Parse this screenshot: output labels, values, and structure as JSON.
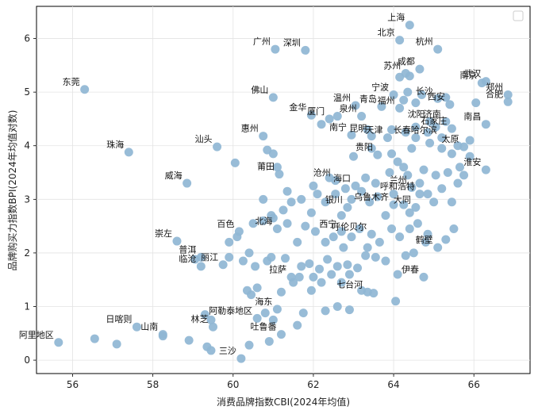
{
  "chart_data": {
    "type": "scatter",
    "title": "",
    "xlabel": "消费品牌指数CBI(2024年均值)",
    "ylabel": "品牌购买力指数BPI(2024年均值对数)",
    "xlim": [
      55.1,
      67.4
    ],
    "ylim": [
      -0.25,
      6.6
    ],
    "xticks": [
      56,
      58,
      60,
      62,
      64,
      66
    ],
    "yticks": [
      0,
      1,
      2,
      3,
      4,
      5,
      6
    ],
    "grid": true,
    "legend_position": "top-right",
    "legend_entries": [
      ""
    ],
    "point_color": "#8fb6d4",
    "labeled_points": [
      {
        "label": "上海",
        "x": 64.4,
        "y": 6.25
      },
      {
        "label": "北京",
        "x": 64.15,
        "y": 5.97
      },
      {
        "label": "杭州",
        "x": 65.1,
        "y": 5.8
      },
      {
        "label": "广州",
        "x": 61.05,
        "y": 5.8
      },
      {
        "label": "深圳",
        "x": 61.8,
        "y": 5.78
      },
      {
        "label": "成都",
        "x": 64.65,
        "y": 5.43
      },
      {
        "label": "苏州",
        "x": 64.3,
        "y": 5.35
      },
      {
        "label": "南京",
        "x": 66.2,
        "y": 5.17
      },
      {
        "label": "武汉",
        "x": 66.3,
        "y": 5.2
      },
      {
        "label": "东莞",
        "x": 56.3,
        "y": 5.05
      },
      {
        "label": "郑州",
        "x": 66.85,
        "y": 4.95
      },
      {
        "label": "合肥",
        "x": 66.85,
        "y": 4.82
      },
      {
        "label": "宁波",
        "x": 64.0,
        "y": 4.95
      },
      {
        "label": "佛山",
        "x": 61.0,
        "y": 4.9
      },
      {
        "label": "长沙",
        "x": 65.1,
        "y": 4.88
      },
      {
        "label": "西安",
        "x": 65.4,
        "y": 4.77
      },
      {
        "label": "温州",
        "x": 63.05,
        "y": 4.75
      },
      {
        "label": "青岛",
        "x": 63.7,
        "y": 4.73
      },
      {
        "label": "福州",
        "x": 64.15,
        "y": 4.7
      },
      {
        "label": "金华",
        "x": 61.95,
        "y": 4.57
      },
      {
        "label": "泉州",
        "x": 63.2,
        "y": 4.55
      },
      {
        "label": "厦门",
        "x": 62.4,
        "y": 4.5
      },
      {
        "label": "沈阳",
        "x": 64.9,
        "y": 4.45
      },
      {
        "label": "济南",
        "x": 65.3,
        "y": 4.45
      },
      {
        "label": "南昌",
        "x": 66.3,
        "y": 4.4
      },
      {
        "label": "石家庄",
        "x": 65.45,
        "y": 4.32
      },
      {
        "label": "惠州",
        "x": 60.75,
        "y": 4.18
      },
      {
        "label": "南宁",
        "x": 62.95,
        "y": 4.2
      },
      {
        "label": "昆明",
        "x": 63.45,
        "y": 4.18
      },
      {
        "label": "天津",
        "x": 63.85,
        "y": 4.15
      },
      {
        "label": "长春",
        "x": 64.55,
        "y": 4.15
      },
      {
        "label": "哈尔滨",
        "x": 65.2,
        "y": 4.15
      },
      {
        "label": "汕头",
        "x": 59.6,
        "y": 3.98
      },
      {
        "label": "太原",
        "x": 65.75,
        "y": 3.98
      },
      {
        "label": "珠海",
        "x": 57.4,
        "y": 3.88
      },
      {
        "label": "贵阳",
        "x": 63.6,
        "y": 3.83
      },
      {
        "label": "淮安",
        "x": 66.3,
        "y": 3.55
      },
      {
        "label": "莆田",
        "x": 61.15,
        "y": 3.47
      },
      {
        "label": "沧州",
        "x": 62.55,
        "y": 3.35
      },
      {
        "label": "威海",
        "x": 58.85,
        "y": 3.3
      },
      {
        "label": "海口",
        "x": 63.05,
        "y": 3.25
      },
      {
        "label": "兰州",
        "x": 64.45,
        "y": 3.22
      },
      {
        "label": "呼和浩特",
        "x": 64.65,
        "y": 3.1
      },
      {
        "label": "银川",
        "x": 62.85,
        "y": 2.85
      },
      {
        "label": "乌鲁木齐",
        "x": 64.0,
        "y": 2.9
      },
      {
        "label": "大同",
        "x": 64.55,
        "y": 2.85
      },
      {
        "label": "百色",
        "x": 60.15,
        "y": 2.4
      },
      {
        "label": "北海",
        "x": 61.1,
        "y": 2.45
      },
      {
        "label": "西宁",
        "x": 62.7,
        "y": 2.4
      },
      {
        "label": "呼伦贝尔",
        "x": 63.45,
        "y": 2.35
      },
      {
        "label": "崇左",
        "x": 58.6,
        "y": 2.22
      },
      {
        "label": "鹤壁",
        "x": 65.1,
        "y": 2.1
      },
      {
        "label": "普洱",
        "x": 59.2,
        "y": 1.92
      },
      {
        "label": "临沧",
        "x": 59.2,
        "y": 1.75
      },
      {
        "label": "丽江",
        "x": 59.75,
        "y": 1.78
      },
      {
        "label": "拉萨",
        "x": 61.45,
        "y": 1.55
      },
      {
        "label": "伊春",
        "x": 64.75,
        "y": 1.55
      },
      {
        "label": "七台河",
        "x": 63.35,
        "y": 1.27
      },
      {
        "label": "海东",
        "x": 61.1,
        "y": 0.95
      },
      {
        "label": "阿勒泰地区",
        "x": 60.6,
        "y": 0.78
      },
      {
        "label": "林芝",
        "x": 59.5,
        "y": 0.62
      },
      {
        "label": "日喀则",
        "x": 57.6,
        "y": 0.62
      },
      {
        "label": "吐鲁番",
        "x": 61.2,
        "y": 0.48
      },
      {
        "label": "山南",
        "x": 58.25,
        "y": 0.48
      },
      {
        "label": "阿里地区",
        "x": 55.65,
        "y": 0.33
      },
      {
        "label": "三沙",
        "x": 60.2,
        "y": 0.03
      }
    ],
    "unlabeled_points": [
      [
        56.55,
        0.4
      ],
      [
        57.1,
        0.3
      ],
      [
        58.25,
        0.45
      ],
      [
        58.9,
        0.37
      ],
      [
        59.35,
        0.25
      ],
      [
        59.45,
        0.18
      ],
      [
        60.4,
        0.28
      ],
      [
        60.9,
        0.35
      ],
      [
        59.3,
        0.85
      ],
      [
        59.45,
        0.75
      ],
      [
        60.8,
        0.88
      ],
      [
        61.0,
        0.75
      ],
      [
        61.6,
        0.65
      ],
      [
        61.75,
        0.88
      ],
      [
        62.3,
        0.92
      ],
      [
        62.6,
        1.0
      ],
      [
        62.9,
        0.94
      ],
      [
        64.05,
        1.1
      ],
      [
        60.35,
        1.3
      ],
      [
        60.45,
        1.22
      ],
      [
        60.6,
        1.35
      ],
      [
        61.2,
        1.27
      ],
      [
        61.5,
        1.45
      ],
      [
        61.65,
        1.55
      ],
      [
        61.95,
        1.3
      ],
      [
        62.0,
        1.55
      ],
      [
        62.2,
        1.45
      ],
      [
        62.45,
        1.6
      ],
      [
        62.7,
        1.45
      ],
      [
        62.9,
        1.6
      ],
      [
        63.2,
        1.3
      ],
      [
        63.5,
        1.25
      ],
      [
        59.05,
        1.88
      ],
      [
        59.9,
        1.92
      ],
      [
        60.25,
        1.85
      ],
      [
        60.4,
        2.0
      ],
      [
        60.55,
        1.75
      ],
      [
        60.85,
        1.85
      ],
      [
        60.95,
        1.92
      ],
      [
        61.3,
        1.9
      ],
      [
        61.7,
        1.75
      ],
      [
        61.9,
        1.8
      ],
      [
        62.15,
        1.7
      ],
      [
        62.35,
        1.88
      ],
      [
        62.6,
        1.75
      ],
      [
        62.85,
        1.78
      ],
      [
        63.1,
        1.72
      ],
      [
        63.3,
        1.95
      ],
      [
        63.55,
        1.92
      ],
      [
        63.8,
        1.85
      ],
      [
        64.1,
        1.6
      ],
      [
        64.3,
        1.95
      ],
      [
        64.5,
        2.0
      ],
      [
        64.8,
        2.2
      ],
      [
        65.3,
        2.25
      ],
      [
        65.5,
        2.45
      ],
      [
        59.9,
        2.2
      ],
      [
        60.1,
        2.3
      ],
      [
        60.5,
        2.55
      ],
      [
        60.95,
        2.7
      ],
      [
        61.35,
        2.55
      ],
      [
        61.6,
        2.2
      ],
      [
        61.8,
        2.5
      ],
      [
        62.05,
        2.4
      ],
      [
        62.3,
        2.2
      ],
      [
        62.5,
        2.3
      ],
      [
        62.75,
        2.1
      ],
      [
        62.95,
        2.3
      ],
      [
        63.15,
        2.45
      ],
      [
        63.35,
        2.1
      ],
      [
        63.65,
        2.2
      ],
      [
        63.95,
        2.45
      ],
      [
        64.15,
        2.3
      ],
      [
        64.4,
        2.45
      ],
      [
        64.6,
        2.55
      ],
      [
        64.85,
        2.35
      ],
      [
        60.75,
        2.6
      ],
      [
        61.0,
        2.65
      ],
      [
        61.25,
        2.8
      ],
      [
        61.45,
        2.95
      ],
      [
        61.7,
        3.0
      ],
      [
        61.95,
        2.75
      ],
      [
        62.1,
        3.1
      ],
      [
        62.3,
        2.95
      ],
      [
        62.55,
        3.1
      ],
      [
        62.7,
        2.7
      ],
      [
        62.95,
        3.0
      ],
      [
        63.2,
        3.15
      ],
      [
        63.4,
        2.95
      ],
      [
        63.6,
        3.05
      ],
      [
        63.8,
        2.7
      ],
      [
        64.0,
        3.1
      ],
      [
        64.25,
        2.9
      ],
      [
        64.4,
        2.75
      ],
      [
        64.65,
        3.3
      ],
      [
        64.85,
        3.1
      ],
      [
        65.0,
        2.95
      ],
      [
        65.2,
        3.2
      ],
      [
        65.45,
        2.95
      ],
      [
        65.6,
        3.3
      ],
      [
        60.75,
        3.0
      ],
      [
        61.35,
        3.15
      ],
      [
        62.0,
        3.25
      ],
      [
        62.4,
        3.4
      ],
      [
        62.8,
        3.2
      ],
      [
        63.3,
        3.4
      ],
      [
        63.55,
        3.3
      ],
      [
        63.9,
        3.5
      ],
      [
        64.25,
        3.6
      ],
      [
        64.35,
        3.45
      ],
      [
        64.75,
        3.55
      ],
      [
        65.05,
        3.45
      ],
      [
        65.35,
        3.5
      ],
      [
        65.65,
        3.6
      ],
      [
        65.75,
        3.45
      ],
      [
        65.9,
        3.8
      ],
      [
        60.05,
        3.68
      ],
      [
        60.85,
        3.92
      ],
      [
        61.0,
        3.85
      ],
      [
        61.1,
        3.6
      ],
      [
        63.0,
        3.8
      ],
      [
        63.45,
        3.95
      ],
      [
        63.95,
        3.85
      ],
      [
        64.1,
        3.7
      ],
      [
        64.45,
        3.95
      ],
      [
        64.9,
        4.05
      ],
      [
        65.2,
        3.95
      ],
      [
        65.45,
        3.85
      ],
      [
        65.6,
        4.0
      ],
      [
        65.9,
        4.1
      ],
      [
        62.2,
        4.4
      ],
      [
        62.6,
        4.55
      ],
      [
        63.35,
        4.3
      ],
      [
        63.95,
        4.3
      ],
      [
        64.3,
        4.25
      ],
      [
        64.55,
        4.35
      ],
      [
        64.85,
        4.25
      ],
      [
        65.05,
        4.35
      ],
      [
        64.25,
        4.85
      ],
      [
        64.35,
        5.0
      ],
      [
        64.55,
        4.8
      ],
      [
        64.7,
        4.95
      ],
      [
        65.3,
        4.9
      ],
      [
        66.05,
        4.8
      ],
      [
        64.15,
        5.28
      ],
      [
        64.4,
        5.3
      ]
    ]
  }
}
